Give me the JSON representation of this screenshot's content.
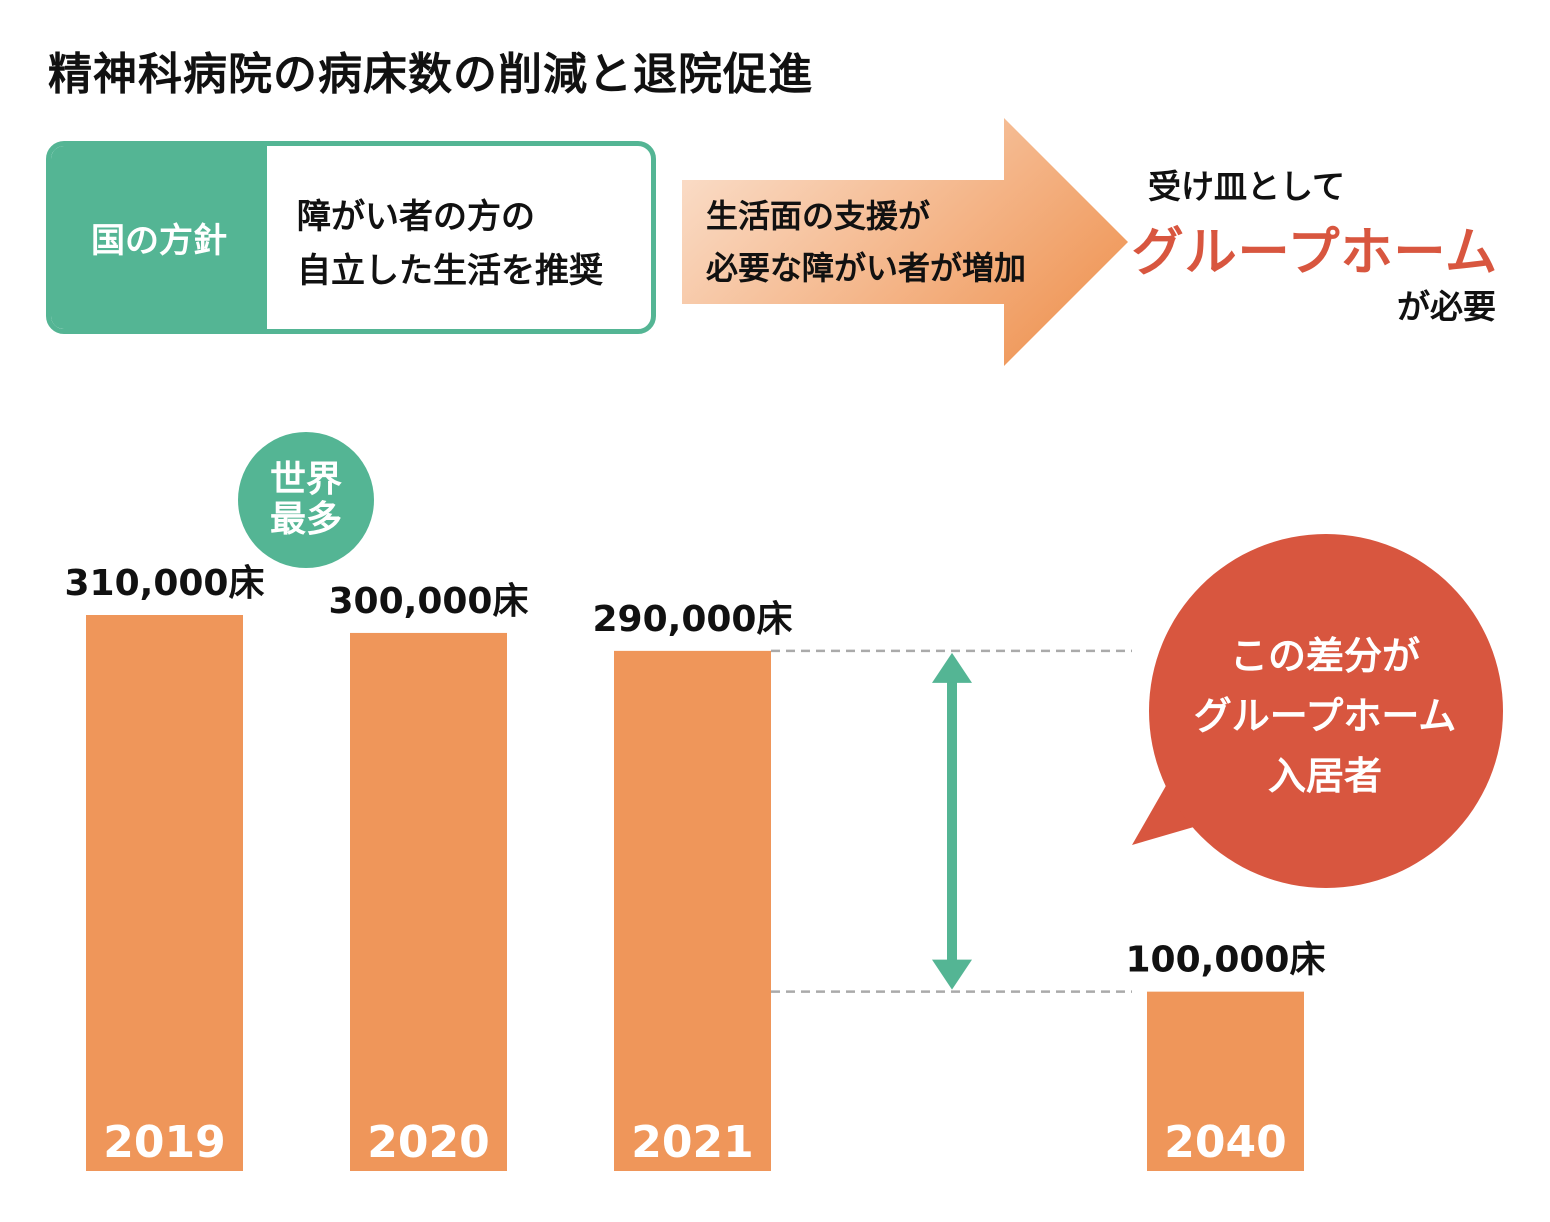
{
  "title": "精神科病院の病床数の削減と退院促進",
  "policy": {
    "label": "国の方針",
    "text_line1": "障がい者の方の",
    "text_line2": "自立した生活を推奨"
  },
  "arrow": {
    "line1": "生活面の支援が",
    "line2": "必要な障がい者が増加"
  },
  "receiver": {
    "line1": "受け皿として",
    "highlight": "グループホーム",
    "line3": "が必要"
  },
  "badge": {
    "line1": "世界",
    "line2": "最多"
  },
  "bubble": {
    "line1": "この差分が",
    "line2": "グループホーム",
    "line3": "入居者"
  },
  "colors": {
    "bar": "#ef965a",
    "green": "#54b594",
    "red": "#d8563f",
    "dashed": "#aaaaaa"
  },
  "chart_data": {
    "type": "bar",
    "categories": [
      "2019",
      "2020",
      "2021",
      "2040"
    ],
    "values": [
      310000,
      300000,
      290000,
      100000
    ],
    "data_labels": [
      "310,000床",
      "300,000床",
      "290,000床",
      "100,000床"
    ],
    "unit": "床",
    "annotation": "この差分がグループホーム入居者",
    "title": "",
    "xlabel": "",
    "ylabel": "",
    "grid": false,
    "legend": "none"
  }
}
